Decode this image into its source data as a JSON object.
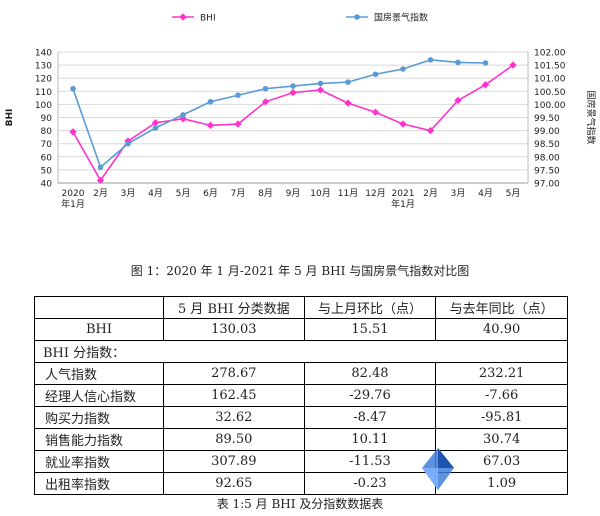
{
  "chart_data": {
    "type": "line",
    "categories": [
      "2020\n年1月",
      "2月",
      "3月",
      "4月",
      "5月",
      "6月",
      "7月",
      "8月",
      "9月",
      "10月",
      "11月",
      "12月",
      "2021\n年1月",
      "2月",
      "3月",
      "4月",
      "5月"
    ],
    "series": [
      {
        "name": "BHI",
        "axis": "left",
        "color": "#ff33cc",
        "values": [
          79,
          42,
          72,
          86,
          89,
          84,
          85,
          102,
          109,
          111,
          101,
          94,
          85,
          80,
          103,
          115,
          130
        ]
      },
      {
        "name": "国房景气指数",
        "axis": "right",
        "color": "#5b9bd5",
        "values": [
          100.6,
          97.6,
          98.5,
          99.1,
          99.6,
          100.1,
          100.35,
          100.6,
          100.7,
          100.8,
          100.85,
          101.15,
          101.35,
          101.7,
          101.6,
          101.58,
          null
        ]
      }
    ],
    "ylim_left": [
      40,
      140
    ],
    "yticks_left": [
      "40",
      "50",
      "60",
      "70",
      "80",
      "90",
      "100",
      "110",
      "120",
      "130",
      "140"
    ],
    "ylim_right": [
      97.0,
      102.0
    ],
    "yticks_right": [
      "97.00",
      "97.50",
      "98.00",
      "98.50",
      "99.00",
      "99.50",
      "100.00",
      "100.50",
      "101.00",
      "101.50",
      "102.00"
    ],
    "ylabel_left": "BHI",
    "ylabel_right": "国房景气指数",
    "legend_position": "top",
    "grid": true
  },
  "figure_caption": "图 1：2020 年 1 月-2021 年 5 月 BHI 与国房景气指数对比图",
  "table": {
    "headers": [
      "",
      "5 月 BHI 分类数据",
      "与上月环比（点）",
      "与去年同比（点）"
    ],
    "main_row": {
      "label": "BHI",
      "values": [
        "130.03",
        "15.51",
        "40.90"
      ]
    },
    "section_label": "BHI 分指数：",
    "rows": [
      {
        "label": "人气指数",
        "values": [
          "278.67",
          "82.48",
          "232.21"
        ]
      },
      {
        "label": "经理人信心指数",
        "values": [
          "162.45",
          "-29.76",
          "-7.66"
        ]
      },
      {
        "label": "购买力指数",
        "values": [
          "32.62",
          "-8.47",
          "-95.81"
        ]
      },
      {
        "label": "销售能力指数",
        "values": [
          "89.50",
          "10.11",
          "30.74"
        ]
      },
      {
        "label": "就业率指数",
        "values": [
          "307.89",
          "-11.53",
          "67.03"
        ]
      },
      {
        "label": "出租率指数",
        "values": [
          "92.65",
          "-0.23",
          "1.09"
        ]
      }
    ]
  },
  "table_caption": "表 1:5 月 BHI 及分指数数据表",
  "colors": {
    "bhi": "#ff33cc",
    "index": "#5b9bd5",
    "grid": "#d9d9d9"
  },
  "watermark_icon": "diamond-logo-icon"
}
